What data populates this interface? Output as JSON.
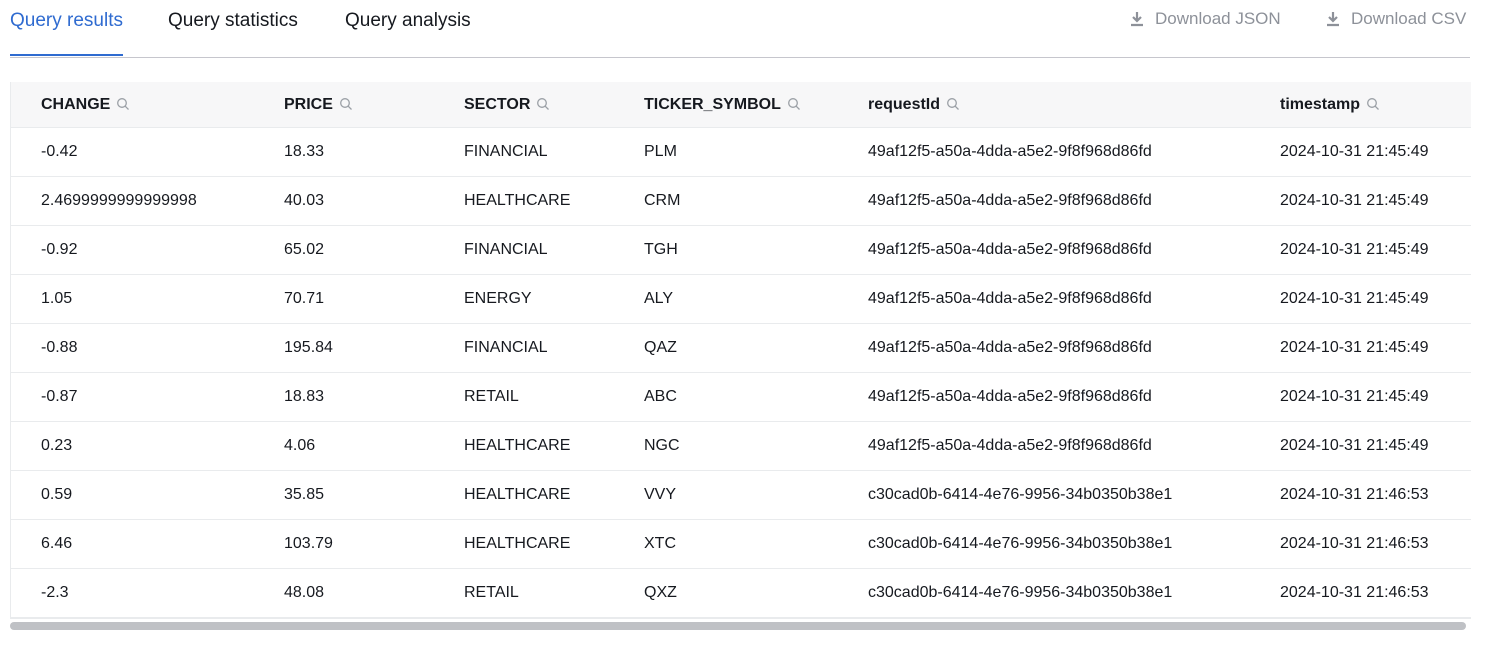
{
  "tabs": [
    "Query results",
    "Query statistics",
    "Query analysis"
  ],
  "actions": [
    "Download JSON",
    "Download CSV"
  ],
  "table": {
    "columns": [
      "CHANGE",
      "PRICE",
      "SECTOR",
      "TICKER_SYMBOL",
      "requestId",
      "timestamp"
    ],
    "rows": [
      [
        "-0.42",
        "18.33",
        "FINANCIAL",
        "PLM",
        "49af12f5-a50a-4dda-a5e2-9f8f968d86fd",
        "2024-10-31 21:45:49"
      ],
      [
        "2.4699999999999998",
        "40.03",
        "HEALTHCARE",
        "CRM",
        "49af12f5-a50a-4dda-a5e2-9f8f968d86fd",
        "2024-10-31 21:45:49"
      ],
      [
        "-0.92",
        "65.02",
        "FINANCIAL",
        "TGH",
        "49af12f5-a50a-4dda-a5e2-9f8f968d86fd",
        "2024-10-31 21:45:49"
      ],
      [
        "1.05",
        "70.71",
        "ENERGY",
        "ALY",
        "49af12f5-a50a-4dda-a5e2-9f8f968d86fd",
        "2024-10-31 21:45:49"
      ],
      [
        "-0.88",
        "195.84",
        "FINANCIAL",
        "QAZ",
        "49af12f5-a50a-4dda-a5e2-9f8f968d86fd",
        "2024-10-31 21:45:49"
      ],
      [
        "-0.87",
        "18.83",
        "RETAIL",
        "ABC",
        "49af12f5-a50a-4dda-a5e2-9f8f968d86fd",
        "2024-10-31 21:45:49"
      ],
      [
        "0.23",
        "4.06",
        "HEALTHCARE",
        "NGC",
        "49af12f5-a50a-4dda-a5e2-9f8f968d86fd",
        "2024-10-31 21:45:49"
      ],
      [
        "0.59",
        "35.85",
        "HEALTHCARE",
        "VVY",
        "c30cad0b-6414-4e76-9956-34b0350b38e1",
        "2024-10-31 21:46:53"
      ],
      [
        "6.46",
        "103.79",
        "HEALTHCARE",
        "XTC",
        "c30cad0b-6414-4e76-9956-34b0350b38e1",
        "2024-10-31 21:46:53"
      ],
      [
        "-2.3",
        "48.08",
        "RETAIL",
        "QXZ",
        "c30cad0b-6414-4e76-9956-34b0350b38e1",
        "2024-10-31 21:46:53"
      ]
    ]
  }
}
